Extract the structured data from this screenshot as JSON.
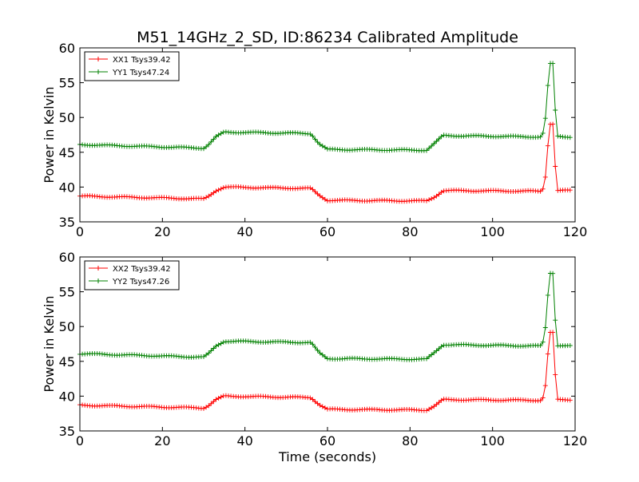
{
  "figure": {
    "title": "M51_14GHz_2_SD, ID:86234 Calibrated Amplitude",
    "xlabel": "Time (seconds)"
  },
  "chart_data": [
    {
      "type": "line",
      "title": "M51_14GHz_2_SD, ID:86234 Calibrated Amplitude",
      "xlabel": "",
      "ylabel": "Power in Kelvin",
      "xlim": [
        0,
        120
      ],
      "ylim": [
        35,
        60
      ],
      "xticks": [
        "0",
        "20",
        "40",
        "60",
        "80",
        "100",
        "120"
      ],
      "yticks": [
        "35",
        "40",
        "45",
        "50",
        "55",
        "60"
      ],
      "legend_position": "top-left",
      "grid": false,
      "marker": "+",
      "series": [
        {
          "name": "XX1 Tsys39.42",
          "color": "#ff0000",
          "x": [
            0,
            30,
            31,
            33,
            35,
            56,
            58,
            60,
            84,
            86,
            88,
            112,
            112.7,
            113.3,
            114,
            114.7,
            115.2,
            115.7,
            119
          ],
          "y": [
            38.7,
            38.3,
            38.6,
            39.5,
            40.0,
            39.8,
            38.8,
            38.1,
            38.0,
            38.6,
            39.5,
            39.4,
            40.7,
            45.5,
            49.1,
            49.1,
            43.0,
            39.5,
            39.5
          ]
        },
        {
          "name": "YY1 Tsys47.24",
          "color": "#008000",
          "x": [
            0,
            30,
            31,
            33,
            35,
            56,
            58,
            60,
            84,
            86,
            88,
            112,
            112.7,
            113.3,
            114,
            114.7,
            115.2,
            115.7,
            119
          ],
          "y": [
            46.1,
            45.6,
            46.0,
            47.2,
            47.9,
            47.7,
            46.2,
            45.4,
            45.3,
            46.3,
            47.4,
            47.2,
            49.0,
            54.0,
            57.7,
            57.7,
            51.0,
            47.3,
            47.2
          ]
        }
      ]
    },
    {
      "type": "line",
      "title": "",
      "xlabel": "Time (seconds)",
      "ylabel": "Power in Kelvin",
      "xlim": [
        0,
        120
      ],
      "ylim": [
        35,
        60
      ],
      "xticks": [
        "0",
        "20",
        "40",
        "60",
        "80",
        "100",
        "120"
      ],
      "yticks": [
        "35",
        "40",
        "45",
        "50",
        "55",
        "60"
      ],
      "legend_position": "top-left",
      "grid": false,
      "marker": "+",
      "series": [
        {
          "name": "XX2 Tsys39.42",
          "color": "#ff0000",
          "x": [
            0,
            30,
            31,
            33,
            35,
            56,
            58,
            60,
            84,
            86,
            88,
            112,
            112.7,
            113.3,
            114,
            114.7,
            115.2,
            115.7,
            119
          ],
          "y": [
            38.7,
            38.3,
            38.6,
            39.5,
            40.0,
            39.8,
            38.8,
            38.1,
            38.0,
            38.6,
            39.5,
            39.4,
            40.7,
            45.5,
            49.1,
            49.1,
            43.0,
            39.5,
            39.5
          ]
        },
        {
          "name": "YY2 Tsys47.26",
          "color": "#008000",
          "x": [
            0,
            30,
            31,
            33,
            35,
            56,
            58,
            60,
            84,
            86,
            88,
            112,
            112.7,
            113.3,
            114,
            114.7,
            115.2,
            115.7,
            119
          ],
          "y": [
            46.1,
            45.6,
            46.0,
            47.2,
            47.9,
            47.7,
            46.2,
            45.4,
            45.3,
            46.3,
            47.4,
            47.2,
            49.0,
            54.0,
            57.7,
            57.7,
            51.0,
            47.3,
            47.2
          ]
        }
      ]
    }
  ]
}
